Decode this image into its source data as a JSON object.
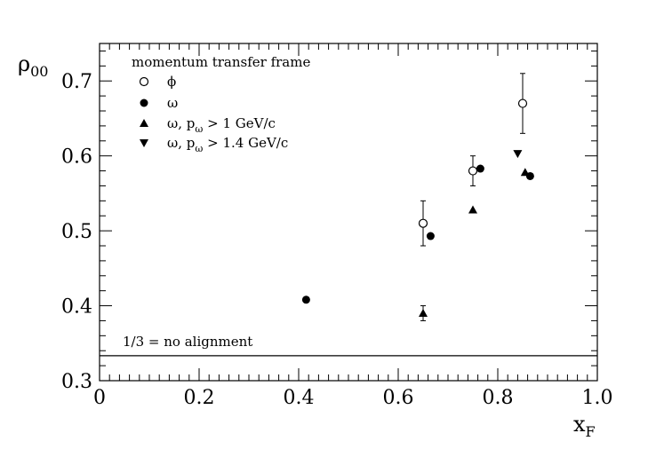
{
  "chart_data": {
    "type": "scatter",
    "xlabel": "x",
    "xlabel_sub": "F",
    "ylabel": "ρ",
    "ylabel_sub": "00",
    "xlim": [
      0,
      1.0
    ],
    "ylim": [
      0.3,
      0.75
    ],
    "xticks": [
      0,
      0.2,
      0.4,
      0.6,
      0.8,
      1.0
    ],
    "xtick_labels": [
      "0",
      "0.2",
      "0.4",
      "0.6",
      "0.8",
      "1.0"
    ],
    "yticks": [
      0.3,
      0.4,
      0.5,
      0.6,
      0.7
    ],
    "ytick_labels": [
      "0.3",
      "0.4",
      "0.5",
      "0.6",
      "0.7"
    ],
    "legend_title": "momentum transfer frame",
    "legend_position": "top-left",
    "series": [
      {
        "legend": "ϕ",
        "marker": "open-circle",
        "points": [
          {
            "x": 0.65,
            "y": 0.51,
            "err": 0.03
          },
          {
            "x": 0.75,
            "y": 0.58,
            "err": 0.02
          },
          {
            "x": 0.85,
            "y": 0.67,
            "err": 0.04
          }
        ]
      },
      {
        "legend": "ω",
        "marker": "filled-circle",
        "points": [
          {
            "x": 0.415,
            "y": 0.408
          },
          {
            "x": 0.665,
            "y": 0.493
          },
          {
            "x": 0.765,
            "y": 0.583
          },
          {
            "x": 0.865,
            "y": 0.573
          }
        ]
      },
      {
        "legend": "ω, p",
        "legend_sub": "ω",
        "legend_tail": " > 1 GeV/c",
        "marker": "triangle-up",
        "points": [
          {
            "x": 0.65,
            "y": 0.39,
            "err": 0.01
          },
          {
            "x": 0.75,
            "y": 0.528
          },
          {
            "x": 0.855,
            "y": 0.578
          }
        ]
      },
      {
        "legend": "ω, p",
        "legend_sub": "ω",
        "legend_tail": " > 1.4 GeV/c",
        "marker": "triangle-down",
        "points": [
          {
            "x": 0.84,
            "y": 0.603
          }
        ]
      }
    ],
    "reference_line": {
      "y": 0.3333,
      "label": "1/3 = no alignment"
    }
  }
}
